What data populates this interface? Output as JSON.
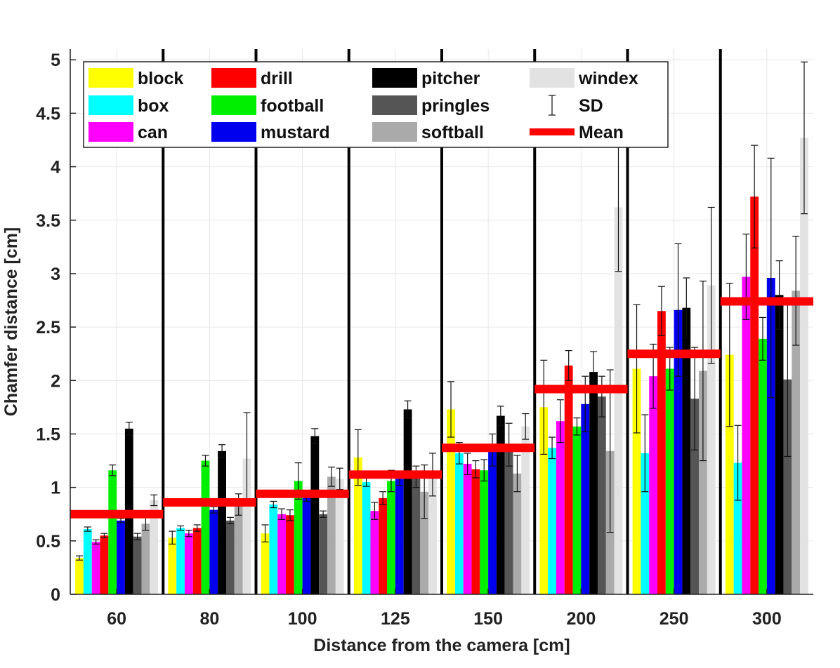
{
  "chart_data": {
    "type": "bar",
    "xlabel": "Distance from the camera [cm]",
    "ylabel": "Chamfer distance [cm]",
    "ylim": [
      0,
      5.1
    ],
    "y_ticks": [
      0,
      0.5,
      1,
      1.5,
      2,
      2.5,
      3,
      3.5,
      4,
      4.5,
      5
    ],
    "y_tick_labels": [
      "0",
      "0.5",
      "1",
      "1.5",
      "2",
      "2.5",
      "3",
      "3.5",
      "4",
      "4.5",
      "5"
    ],
    "grid": true,
    "legend_position": "top",
    "categories": [
      "60",
      "80",
      "100",
      "125",
      "150",
      "200",
      "250",
      "300"
    ],
    "series": [
      {
        "name": "block",
        "color": "#ffff00",
        "values": [
          0.34,
          0.53,
          0.57,
          1.28,
          1.73,
          1.75,
          2.11,
          2.24
        ],
        "sd": [
          0.02,
          0.06,
          0.08,
          0.26,
          0.26,
          0.44,
          0.6,
          0.67
        ]
      },
      {
        "name": "box",
        "color": "#00ffff",
        "values": [
          0.61,
          0.62,
          0.84,
          1.05,
          1.32,
          1.37,
          1.32,
          1.23
        ],
        "sd": [
          0.02,
          0.02,
          0.03,
          0.04,
          0.1,
          0.1,
          0.36,
          0.35
        ]
      },
      {
        "name": "can",
        "color": "#ff00ff",
        "values": [
          0.49,
          0.57,
          0.75,
          0.78,
          1.22,
          1.62,
          2.04,
          2.97
        ],
        "sd": [
          0.02,
          0.03,
          0.05,
          0.08,
          0.1,
          0.2,
          0.3,
          0.4
        ]
      },
      {
        "name": "drill",
        "color": "#ff0000",
        "values": [
          0.55,
          0.62,
          0.74,
          0.9,
          1.17,
          2.14,
          2.65,
          3.72
        ],
        "sd": [
          0.02,
          0.03,
          0.05,
          0.06,
          0.08,
          0.14,
          0.23,
          0.48
        ]
      },
      {
        "name": "football",
        "color": "#00ee00",
        "values": [
          1.16,
          1.25,
          1.06,
          1.06,
          1.16,
          1.57,
          2.11,
          2.39
        ],
        "sd": [
          0.05,
          0.05,
          0.17,
          0.1,
          0.1,
          0.08,
          0.2,
          0.2
        ]
      },
      {
        "name": "mustard",
        "color": "#0000ee",
        "values": [
          0.69,
          0.79,
          0.91,
          1.08,
          1.35,
          1.78,
          2.66,
          2.96
        ],
        "sd": [
          0.02,
          0.03,
          0.04,
          0.06,
          0.15,
          0.26,
          0.62,
          1.12
        ]
      },
      {
        "name": "pitcher",
        "color": "#000000",
        "values": [
          1.55,
          1.34,
          1.48,
          1.73,
          1.67,
          2.08,
          2.68,
          2.8
        ],
        "sd": [
          0.06,
          0.06,
          0.07,
          0.08,
          0.09,
          0.19,
          0.28,
          0.32
        ]
      },
      {
        "name": "pringles",
        "color": "#555555",
        "values": [
          0.54,
          0.69,
          0.75,
          1.1,
          1.4,
          1.85,
          1.83,
          2.01
        ],
        "sd": [
          0.03,
          0.03,
          0.03,
          0.1,
          0.2,
          0.19,
          0.48,
          0.72
        ]
      },
      {
        "name": "softball",
        "color": "#aaaaaa",
        "values": [
          0.66,
          0.84,
          1.1,
          0.96,
          1.13,
          1.34,
          2.09,
          2.84
        ],
        "sd": [
          0.06,
          0.1,
          0.09,
          0.25,
          0.17,
          0.76,
          0.84,
          0.51
        ]
      },
      {
        "name": "windex",
        "color": "#e2e2e2",
        "values": [
          0.88,
          1.27,
          1.08,
          1.12,
          1.57,
          3.62,
          2.89,
          4.27
        ],
        "sd": [
          0.05,
          0.43,
          0.1,
          0.2,
          0.12,
          0.6,
          0.73,
          0.71
        ]
      }
    ],
    "means": [
      0.75,
      0.86,
      0.94,
      1.12,
      1.37,
      1.92,
      2.25,
      2.74
    ],
    "legend_entries": [
      "block",
      "drill",
      "pitcher",
      "windex",
      "box",
      "football",
      "pringles",
      "SD",
      "can",
      "mustard",
      "softball",
      "Mean"
    ],
    "sd_label": "SD",
    "mean_label": "Mean",
    "mean_color": "#ff0000"
  }
}
